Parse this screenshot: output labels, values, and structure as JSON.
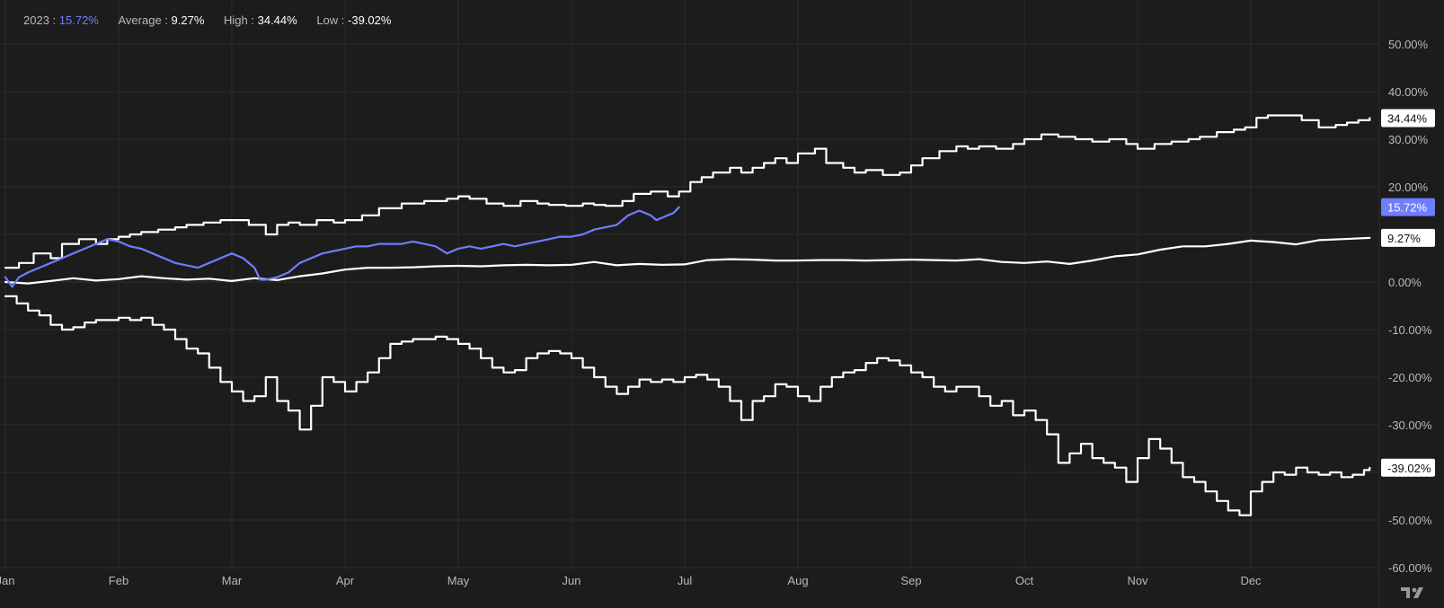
{
  "legend": {
    "year_label": "2023",
    "year_value": "15.72%",
    "average_label": "Average",
    "average_value": "9.27%",
    "high_label": "High",
    "high_value": "34.44%",
    "low_label": "Low",
    "low_value": "-39.02%",
    "separator": " : "
  },
  "tags": {
    "high": "34.44%",
    "year": "15.72%",
    "average": "9.27%",
    "low": "-39.02%"
  },
  "colors": {
    "background": "#1c1c1c",
    "grid": "#2b2b2b",
    "axis_text": "#b9b9b9",
    "white_series": "#ffffff",
    "blue_series": "#6f7dff"
  },
  "chart_data": {
    "type": "line",
    "title": "",
    "xlabel": "",
    "ylabel": "",
    "x_ticks": [
      "Jan",
      "Feb",
      "Mar",
      "Apr",
      "May",
      "Jun",
      "Jul",
      "Aug",
      "Sep",
      "Oct",
      "Nov",
      "Dec"
    ],
    "y_ticks": [
      "50.00%",
      "40.00%",
      "30.00%",
      "20.00%",
      "10.00%",
      "0.00%",
      "-10.00%",
      "-20.00%",
      "-30.00%",
      "-40.00%",
      "-50.00%",
      "-60.00%"
    ],
    "ylim": [
      -63,
      54
    ],
    "xlim": [
      0,
      12.15
    ],
    "grid": true,
    "legend_position": "top-left",
    "series": [
      {
        "name": "High",
        "color": "#ffffff",
        "x": [
          0,
          0.12,
          0.25,
          0.4,
          0.5,
          0.65,
          0.8,
          0.9,
          1.0,
          1.1,
          1.2,
          1.35,
          1.5,
          1.6,
          1.75,
          1.9,
          2.0,
          2.15,
          2.3,
          2.4,
          2.5,
          2.6,
          2.75,
          2.9,
          3.0,
          3.15,
          3.3,
          3.5,
          3.7,
          3.9,
          4.0,
          4.1,
          4.25,
          4.4,
          4.55,
          4.7,
          4.8,
          4.95,
          5.1,
          5.2,
          5.3,
          5.45,
          5.55,
          5.7,
          5.85,
          5.95,
          6.05,
          6.15,
          6.25,
          6.4,
          6.5,
          6.6,
          6.7,
          6.8,
          6.9,
          7.0,
          7.15,
          7.25,
          7.4,
          7.5,
          7.6,
          7.75,
          7.9,
          8.0,
          8.1,
          8.25,
          8.4,
          8.5,
          8.6,
          8.75,
          8.9,
          9.0,
          9.15,
          9.3,
          9.45,
          9.6,
          9.75,
          9.9,
          10.0,
          10.15,
          10.3,
          10.45,
          10.55,
          10.7,
          10.85,
          10.95,
          11.05,
          11.15,
          11.3,
          11.45,
          11.6,
          11.75,
          11.85,
          11.95,
          12.05
        ],
        "y": [
          3,
          4,
          6,
          5,
          8,
          9,
          8,
          9,
          9.5,
          10,
          10.5,
          11,
          11.5,
          12,
          12.5,
          13,
          13,
          12,
          10,
          12,
          12.5,
          12,
          13,
          12.5,
          13,
          14,
          15.5,
          16.5,
          17,
          17.5,
          18,
          17.5,
          16.5,
          16,
          17,
          16.5,
          16.2,
          16,
          16.5,
          16.2,
          16,
          17,
          18.5,
          19,
          18,
          19,
          21,
          22,
          23,
          24,
          23,
          24,
          25,
          26,
          25,
          27,
          28,
          25,
          24,
          23,
          23.5,
          22.5,
          23,
          24.5,
          26,
          27.5,
          28.5,
          28,
          28.5,
          28,
          29,
          30,
          31,
          30.5,
          30,
          29.5,
          30,
          29,
          28,
          29,
          29.5,
          30,
          30.5,
          31.5,
          32,
          32.5,
          34.5,
          35,
          35,
          34,
          32.5,
          33,
          33.5,
          34,
          34.44
        ]
      },
      {
        "name": "Average",
        "color": "#ffffff",
        "x": [
          0,
          0.2,
          0.4,
          0.6,
          0.8,
          1.0,
          1.2,
          1.4,
          1.6,
          1.8,
          2.0,
          2.2,
          2.4,
          2.6,
          2.8,
          3.0,
          3.2,
          3.4,
          3.6,
          3.8,
          4.0,
          4.2,
          4.4,
          4.6,
          4.8,
          5.0,
          5.2,
          5.4,
          5.6,
          5.8,
          6.0,
          6.2,
          6.4,
          6.6,
          6.8,
          7.0,
          7.2,
          7.4,
          7.6,
          7.8,
          8.0,
          8.2,
          8.4,
          8.6,
          8.8,
          9.0,
          9.2,
          9.4,
          9.6,
          9.8,
          10.0,
          10.2,
          10.4,
          10.6,
          10.8,
          11.0,
          11.2,
          11.4,
          11.6,
          11.8,
          12.05
        ],
        "y": [
          0,
          -0.3,
          0.2,
          0.8,
          0.3,
          0.6,
          1.2,
          0.8,
          0.5,
          0.7,
          0.2,
          0.8,
          0.4,
          1.2,
          1.8,
          2.6,
          3.0,
          3.0,
          3.1,
          3.3,
          3.4,
          3.3,
          3.5,
          3.6,
          3.5,
          3.6,
          4.2,
          3.5,
          3.8,
          3.6,
          3.7,
          4.6,
          4.8,
          4.7,
          4.5,
          4.5,
          4.6,
          4.6,
          4.5,
          4.6,
          4.7,
          4.6,
          4.5,
          4.8,
          4.2,
          4.0,
          4.3,
          3.8,
          4.5,
          5.4,
          5.8,
          6.8,
          7.5,
          7.5,
          8.0,
          8.7,
          8.4,
          7.9,
          8.8,
          9.0,
          9.27
        ]
      },
      {
        "name": "Low",
        "color": "#ffffff",
        "x": [
          0,
          0.1,
          0.2,
          0.3,
          0.4,
          0.5,
          0.6,
          0.7,
          0.8,
          0.9,
          1.0,
          1.1,
          1.2,
          1.3,
          1.4,
          1.5,
          1.6,
          1.7,
          1.8,
          1.9,
          2.0,
          2.1,
          2.2,
          2.3,
          2.4,
          2.5,
          2.6,
          2.7,
          2.8,
          2.9,
          3.0,
          3.1,
          3.2,
          3.3,
          3.4,
          3.5,
          3.6,
          3.7,
          3.8,
          3.9,
          4.0,
          4.1,
          4.2,
          4.3,
          4.4,
          4.5,
          4.6,
          4.7,
          4.8,
          4.9,
          5.0,
          5.1,
          5.2,
          5.3,
          5.4,
          5.5,
          5.6,
          5.7,
          5.8,
          5.9,
          6.0,
          6.1,
          6.2,
          6.3,
          6.4,
          6.5,
          6.6,
          6.7,
          6.8,
          6.9,
          7.0,
          7.1,
          7.2,
          7.3,
          7.4,
          7.5,
          7.6,
          7.7,
          7.8,
          7.9,
          8.0,
          8.1,
          8.2,
          8.3,
          8.4,
          8.5,
          8.6,
          8.7,
          8.8,
          8.9,
          9.0,
          9.1,
          9.2,
          9.3,
          9.4,
          9.5,
          9.6,
          9.7,
          9.8,
          9.9,
          10.0,
          10.1,
          10.2,
          10.3,
          10.4,
          10.5,
          10.6,
          10.7,
          10.8,
          10.9,
          11.0,
          11.1,
          11.2,
          11.3,
          11.4,
          11.5,
          11.6,
          11.7,
          11.8,
          11.9,
          12.0,
          12.05
        ],
        "y": [
          -3,
          -4.5,
          -6,
          -7,
          -9,
          -10,
          -9.5,
          -8.5,
          -8,
          -8,
          -7.5,
          -8,
          -7.5,
          -9,
          -10,
          -12,
          -14,
          -15,
          -18,
          -21,
          -23,
          -25,
          -24,
          -20,
          -25,
          -27,
          -31,
          -26,
          -20,
          -21,
          -23,
          -21,
          -19,
          -16,
          -13,
          -12.5,
          -12,
          -12,
          -11.5,
          -12,
          -13,
          -14,
          -16,
          -18,
          -19,
          -18.5,
          -16,
          -15,
          -14.5,
          -15,
          -16,
          -18,
          -20,
          -22,
          -23.5,
          -22,
          -20.5,
          -21,
          -20.5,
          -21,
          -20,
          -19.5,
          -20.5,
          -22,
          -25,
          -29,
          -25,
          -24,
          -21.5,
          -22,
          -24,
          -25,
          -22,
          -20,
          -19,
          -18.5,
          -17,
          -16,
          -16.5,
          -17.5,
          -19,
          -20,
          -22,
          -23,
          -22,
          -22,
          -24,
          -26,
          -25,
          -28,
          -27,
          -29,
          -32,
          -38,
          -36,
          -34,
          -37,
          -38,
          -39,
          -42,
          -37,
          -33,
          -35,
          -38,
          -41,
          -42,
          -44,
          -46,
          -48,
          -49,
          -44,
          -42,
          -40,
          -40.5,
          -39,
          -40,
          -40.5,
          -40,
          -41,
          -40.5,
          -39.5,
          -39.02
        ]
      },
      {
        "name": "2023",
        "color": "#6f7dff",
        "x": [
          0,
          0.06,
          0.12,
          0.2,
          0.3,
          0.4,
          0.5,
          0.6,
          0.7,
          0.8,
          0.9,
          1.0,
          1.1,
          1.2,
          1.3,
          1.4,
          1.5,
          1.6,
          1.7,
          1.8,
          1.9,
          2.0,
          2.1,
          2.2,
          2.25,
          2.3,
          2.4,
          2.5,
          2.6,
          2.7,
          2.8,
          2.9,
          3.0,
          3.1,
          3.2,
          3.3,
          3.4,
          3.5,
          3.6,
          3.7,
          3.8,
          3.9,
          4.0,
          4.1,
          4.2,
          4.3,
          4.4,
          4.5,
          4.6,
          4.7,
          4.8,
          4.9,
          5.0,
          5.1,
          5.2,
          5.3,
          5.4,
          5.5,
          5.6,
          5.7,
          5.75,
          5.8,
          5.9,
          5.95
        ],
        "y": [
          1,
          -1,
          1,
          2,
          3,
          4,
          5,
          6,
          7,
          8,
          9,
          8.5,
          7.5,
          7,
          6,
          5,
          4,
          3.5,
          3,
          4,
          5,
          6,
          5,
          3,
          0.5,
          0.5,
          1,
          2,
          4,
          5,
          6,
          6.5,
          7,
          7.5,
          7.5,
          8,
          8,
          8,
          8.5,
          8,
          7.5,
          6,
          7,
          7.5,
          7,
          7.5,
          8,
          7.5,
          8,
          8.5,
          9,
          9.5,
          9.5,
          10,
          11,
          11.5,
          12,
          14,
          15,
          14,
          13,
          13.5,
          14.5,
          15.72
        ]
      }
    ]
  }
}
